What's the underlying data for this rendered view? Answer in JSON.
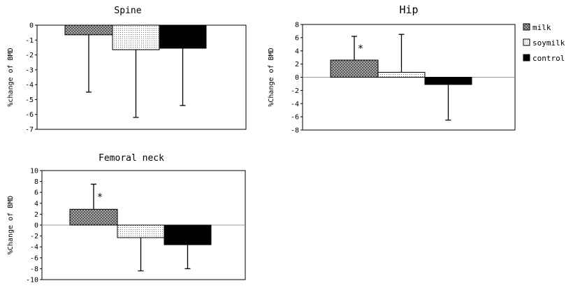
{
  "legend": [
    {
      "key": "milk",
      "label": "milk"
    },
    {
      "key": "soymilk",
      "label": "soymilk"
    },
    {
      "key": "control",
      "label": "control"
    }
  ],
  "chart_data": [
    {
      "type": "bar",
      "title": "Spine",
      "ylabel": "%change of BMD",
      "ylim": [
        -7,
        0
      ],
      "yticks": [
        0,
        -1,
        -2,
        -3,
        -4,
        -5,
        -6,
        -7
      ],
      "series": [
        {
          "name": "milk",
          "value": -0.65,
          "error_end": -4.5
        },
        {
          "name": "soymilk",
          "value": -1.65,
          "error_end": -6.2
        },
        {
          "name": "control",
          "value": -1.55,
          "error_end": -5.4
        }
      ],
      "annotations": []
    },
    {
      "type": "bar",
      "title": "Hip",
      "ylabel": "%Change of BMD",
      "ylim": [
        -8,
        8
      ],
      "yticks": [
        8,
        6,
        4,
        2,
        0,
        -2,
        -4,
        -6,
        -8
      ],
      "series": [
        {
          "name": "milk",
          "value": 2.6,
          "error_end": 6.2
        },
        {
          "name": "soymilk",
          "value": 0.75,
          "error_end": 6.5
        },
        {
          "name": "control",
          "value": -1.1,
          "error_end": -6.5
        }
      ],
      "annotations": [
        {
          "series": "milk",
          "text": "*"
        }
      ]
    },
    {
      "type": "bar",
      "title": "Femoral neck",
      "ylabel": "%Change of BMD",
      "ylim": [
        -10,
        10
      ],
      "yticks": [
        10,
        8,
        6,
        4,
        2,
        0,
        -2,
        -4,
        -6,
        -8,
        -10
      ],
      "series": [
        {
          "name": "milk",
          "value": 2.9,
          "error_end": 7.5
        },
        {
          "name": "soymilk",
          "value": -2.3,
          "error_end": -8.4
        },
        {
          "name": "control",
          "value": -3.6,
          "error_end": -8.0
        }
      ],
      "annotations": [
        {
          "series": "milk",
          "text": "*"
        }
      ]
    }
  ]
}
